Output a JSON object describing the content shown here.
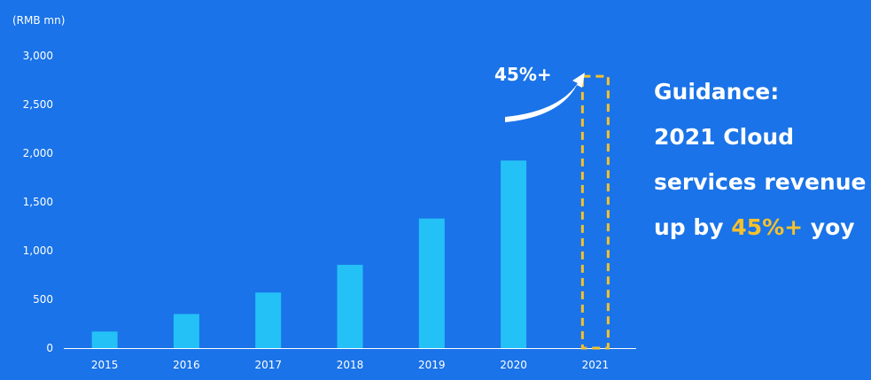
{
  "colors": {
    "background": "#1a73e8",
    "bar": "#24c1f7",
    "highlight": "#f6c12b",
    "text": "#ffffff"
  },
  "unit_label": "(RMB mn)",
  "arrow_label": "45%+",
  "guidance": {
    "line1": "Guidance:",
    "line2": "2021 Cloud",
    "line3": "services revenue",
    "line4_prefix": "up by ",
    "line4_highlight": "45%+",
    "line4_suffix": " yoy"
  },
  "chart_data": {
    "type": "bar",
    "categories": [
      "2015",
      "2016",
      "2017",
      "2018",
      "2019",
      "2020",
      "2021"
    ],
    "values": [
      170,
      350,
      570,
      855,
      1330,
      1925,
      null
    ],
    "projected": {
      "category": "2021",
      "value": 2790,
      "style": "dashed-outline"
    },
    "ylabel": "(RMB mn)",
    "ylim": [
      0,
      3000
    ],
    "yticks": [
      0,
      500,
      1000,
      1500,
      2000,
      2500,
      3000
    ],
    "ytick_labels": [
      "0",
      "500",
      "1,000",
      "1,500",
      "2,000",
      "2,500",
      "3,000"
    ],
    "grid": false,
    "legend": "none"
  }
}
